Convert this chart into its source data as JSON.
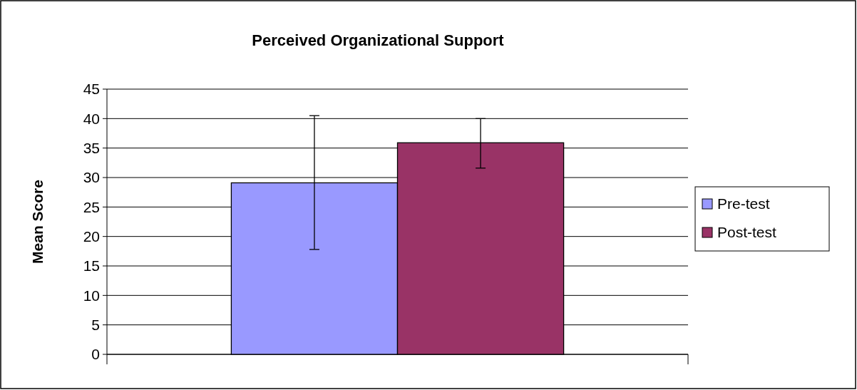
{
  "chart_data": {
    "type": "bar",
    "title": "Perceived Organizational Support",
    "ylabel": "Mean Score",
    "categories": [
      null
    ],
    "series": [
      {
        "name": "Pre-test",
        "color": "#9999ff",
        "values": [
          29.1
        ],
        "errors": [
          [
            17.8,
            40.5
          ]
        ]
      },
      {
        "name": "Post-test",
        "color": "#993366",
        "values": [
          35.9
        ],
        "errors": [
          [
            31.6,
            40.0
          ]
        ]
      }
    ],
    "ylim": [
      0,
      45
    ],
    "yticks": [
      0,
      5,
      10,
      15,
      20,
      25,
      30,
      35,
      40,
      45
    ],
    "grid": "y",
    "legend": "right"
  }
}
